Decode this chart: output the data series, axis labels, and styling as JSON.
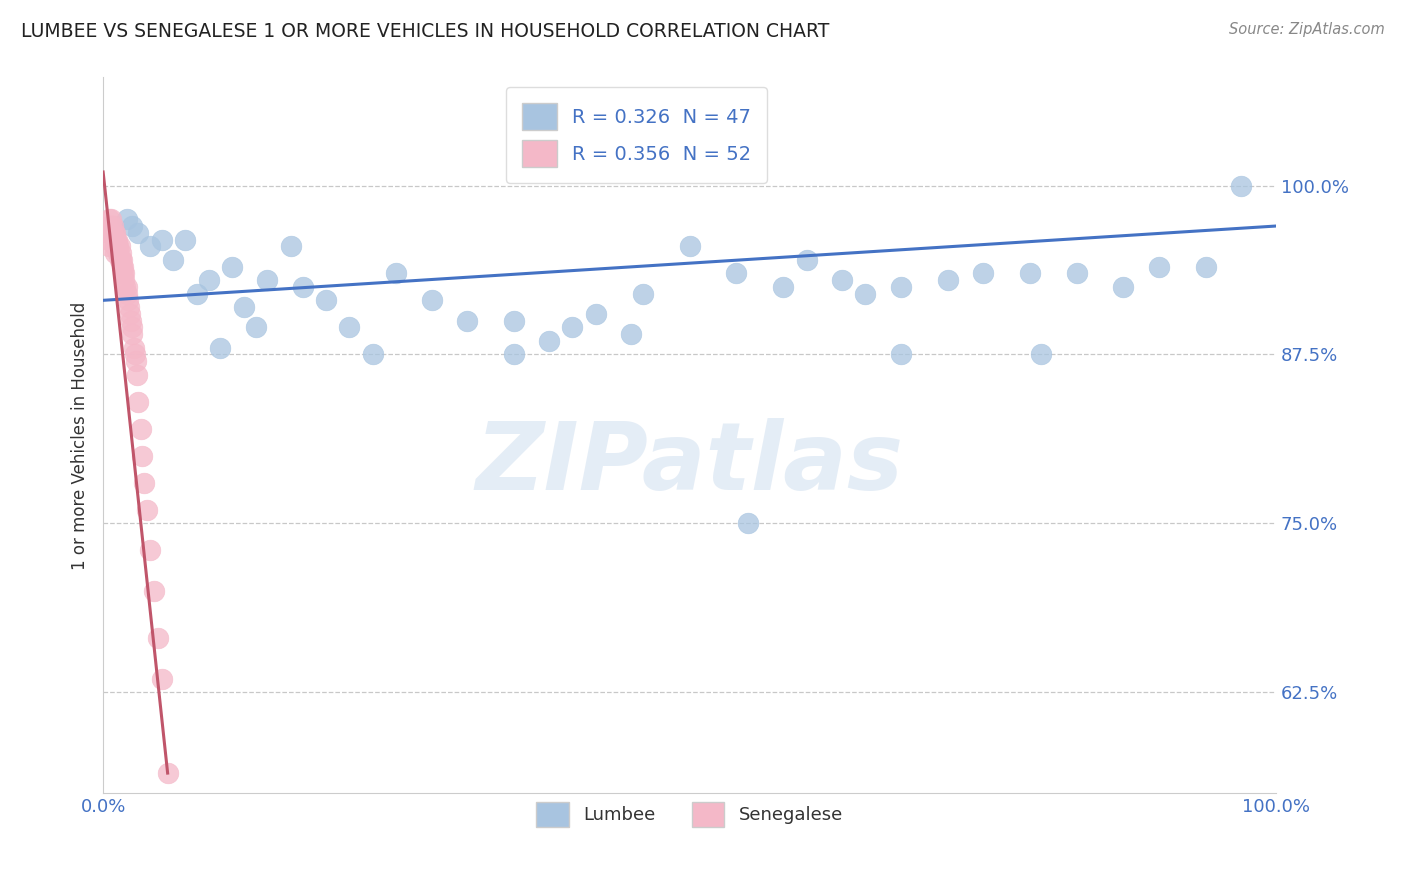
{
  "title": "LUMBEE VS SENEGALESE 1 OR MORE VEHICLES IN HOUSEHOLD CORRELATION CHART",
  "source": "Source: ZipAtlas.com",
  "ylabel": "1 or more Vehicles in Household",
  "ytick_labels": [
    "62.5%",
    "75.0%",
    "87.5%",
    "100.0%"
  ],
  "ytick_values": [
    0.625,
    0.75,
    0.875,
    1.0
  ],
  "xlim": [
    0.0,
    1.0
  ],
  "ylim": [
    0.55,
    1.08
  ],
  "lumbee_color": "#a8c4e0",
  "senegalese_color": "#f4b8c8",
  "lumbee_line_color": "#4472c4",
  "senegalese_line_color": "#c0556a",
  "background_color": "#ffffff",
  "lumbee_scatter_x": [
    0.02,
    0.025,
    0.03,
    0.04,
    0.05,
    0.06,
    0.07,
    0.08,
    0.09,
    0.1,
    0.11,
    0.12,
    0.13,
    0.14,
    0.16,
    0.17,
    0.19,
    0.21,
    0.23,
    0.25,
    0.28,
    0.31,
    0.35,
    0.38,
    0.42,
    0.46,
    0.5,
    0.54,
    0.58,
    0.6,
    0.63,
    0.65,
    0.68,
    0.72,
    0.75,
    0.79,
    0.83,
    0.87,
    0.9,
    0.94,
    0.35,
    0.4,
    0.45,
    0.55,
    0.68,
    0.8,
    0.97
  ],
  "lumbee_scatter_y": [
    0.975,
    0.97,
    0.965,
    0.955,
    0.96,
    0.945,
    0.96,
    0.92,
    0.93,
    0.88,
    0.94,
    0.91,
    0.895,
    0.93,
    0.955,
    0.925,
    0.915,
    0.895,
    0.875,
    0.935,
    0.915,
    0.9,
    0.9,
    0.885,
    0.905,
    0.92,
    0.955,
    0.935,
    0.925,
    0.945,
    0.93,
    0.92,
    0.925,
    0.93,
    0.935,
    0.935,
    0.935,
    0.925,
    0.94,
    0.94,
    0.875,
    0.895,
    0.89,
    0.75,
    0.875,
    0.875,
    1.0
  ],
  "senegalese_scatter_x": [
    0.005,
    0.005,
    0.005,
    0.005,
    0.005,
    0.007,
    0.007,
    0.008,
    0.009,
    0.01,
    0.01,
    0.01,
    0.01,
    0.011,
    0.011,
    0.012,
    0.012,
    0.013,
    0.013,
    0.014,
    0.014,
    0.015,
    0.015,
    0.016,
    0.016,
    0.017,
    0.017,
    0.018,
    0.018,
    0.019,
    0.02,
    0.02,
    0.021,
    0.022,
    0.023,
    0.024,
    0.025,
    0.025,
    0.026,
    0.027,
    0.028,
    0.029,
    0.03,
    0.032,
    0.033,
    0.035,
    0.037,
    0.04,
    0.043,
    0.047,
    0.05,
    0.055
  ],
  "senegalese_scatter_y": [
    0.975,
    0.97,
    0.965,
    0.96,
    0.955,
    0.975,
    0.97,
    0.97,
    0.965,
    0.965,
    0.96,
    0.955,
    0.95,
    0.96,
    0.955,
    0.96,
    0.955,
    0.955,
    0.95,
    0.955,
    0.945,
    0.95,
    0.945,
    0.945,
    0.94,
    0.94,
    0.935,
    0.935,
    0.93,
    0.925,
    0.925,
    0.92,
    0.915,
    0.91,
    0.905,
    0.9,
    0.895,
    0.89,
    0.88,
    0.875,
    0.87,
    0.86,
    0.84,
    0.82,
    0.8,
    0.78,
    0.76,
    0.73,
    0.7,
    0.665,
    0.635,
    0.565
  ],
  "lumbee_line_x": [
    0.0,
    1.0
  ],
  "lumbee_line_y": [
    0.915,
    0.97
  ],
  "senegalese_line_x": [
    0.0,
    0.055
  ],
  "senegalese_line_y": [
    1.01,
    0.565
  ],
  "watermark_text": "ZIPatlas",
  "legend_lumbee": "R = 0.326  N = 47",
  "legend_senegalese": "R = 0.356  N = 52"
}
